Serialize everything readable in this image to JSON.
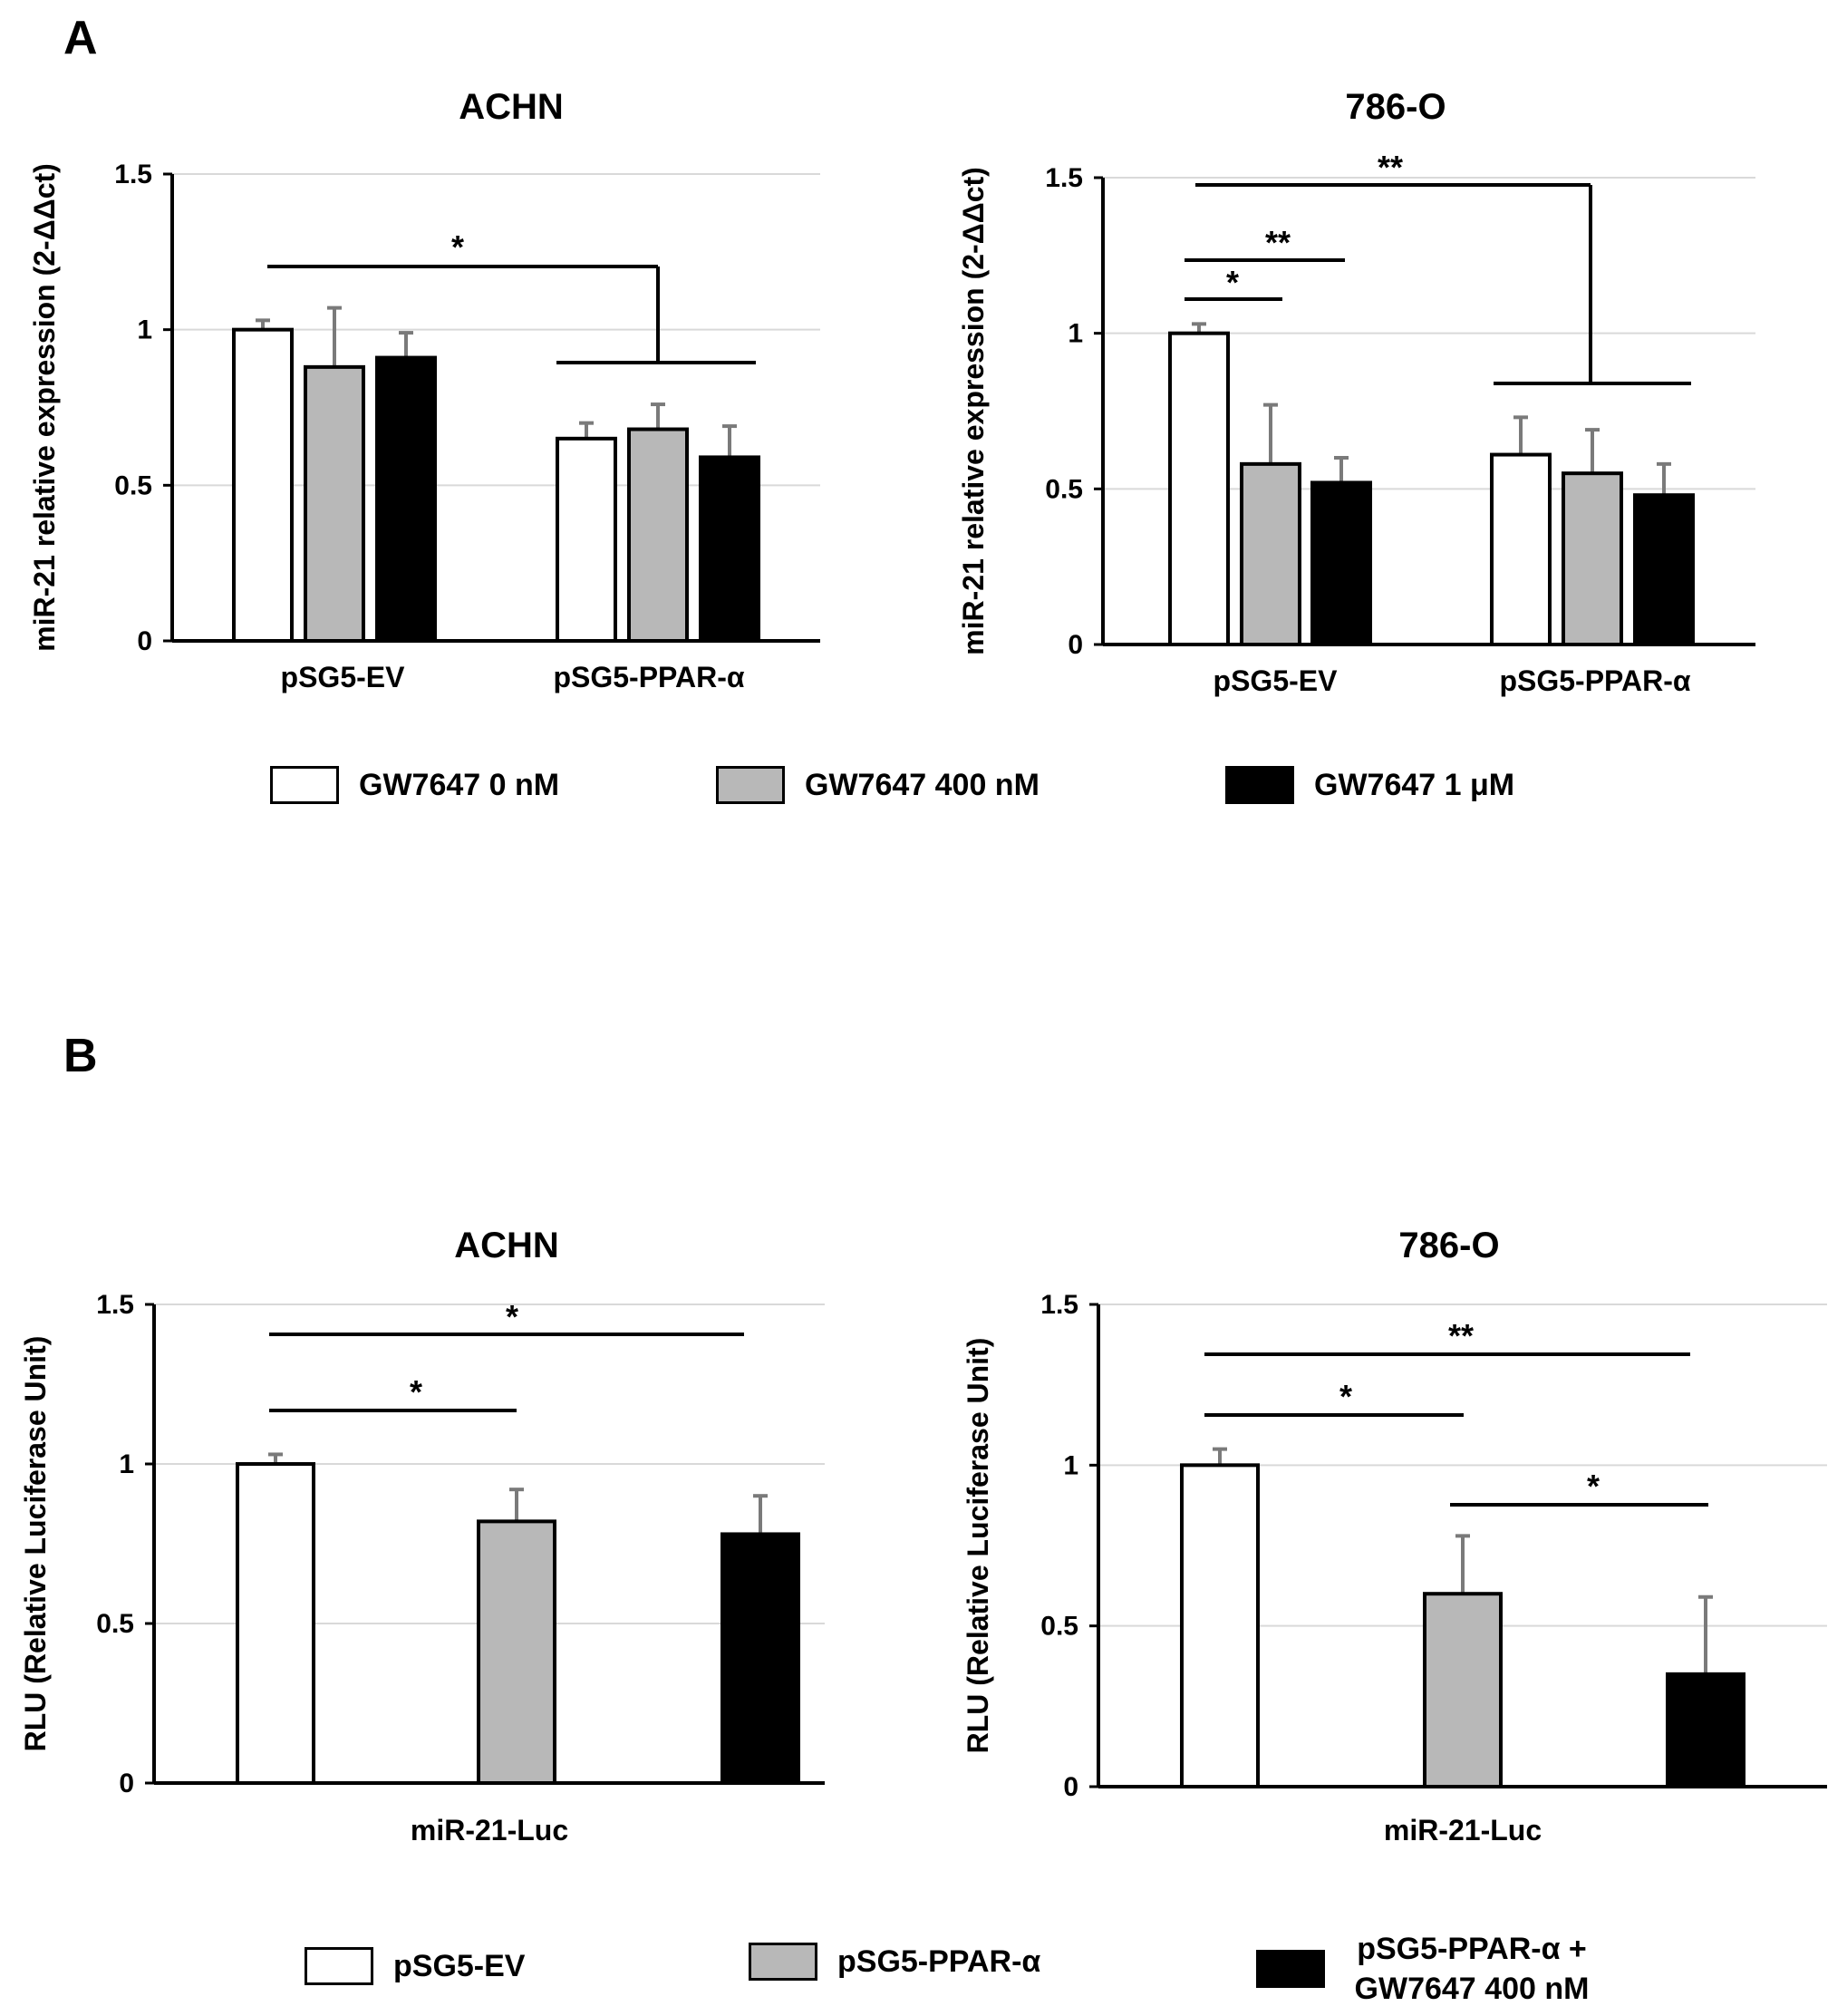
{
  "panels": {
    "A": {
      "label": "A"
    },
    "B": {
      "label": "B"
    }
  },
  "legends": {
    "A": [
      {
        "label": "GW7647 0 nM",
        "color": "#ffffff"
      },
      {
        "label": "GW7647 400 nM",
        "color": "#b8b8b8"
      },
      {
        "label": "GW7647 1 μM",
        "color": "#000000"
      }
    ],
    "B": [
      {
        "label": "pSG5-EV",
        "color": "#ffffff"
      },
      {
        "label": "pSG5-PPAR-α",
        "color": "#b8b8b8"
      },
      {
        "label_line1": "pSG5-PPAR-α +",
        "label_line2": "GW7647 400 nM",
        "color": "#000000"
      }
    ]
  },
  "chart_data": [
    {
      "id": "A-ACHN",
      "type": "bar",
      "title": "ACHN",
      "ylabel": "miR-21 relative expression (2-ΔΔct)",
      "ylim": [
        0,
        1.5
      ],
      "yticks": [
        "0",
        "0.5",
        "1",
        "1.5"
      ],
      "categories": [
        "pSG5-EV",
        "pSG5-PPAR-α"
      ],
      "series": [
        {
          "name": "GW7647 0 nM",
          "values": [
            1.0,
            0.65
          ],
          "errors": [
            0.03,
            0.05
          ]
        },
        {
          "name": "GW7647 400 nM",
          "values": [
            0.88,
            0.68
          ],
          "errors": [
            0.19,
            0.08
          ]
        },
        {
          "name": "GW7647 1 μM",
          "values": [
            0.91,
            0.59
          ],
          "errors": [
            0.08,
            0.1
          ]
        }
      ],
      "annotations": [
        {
          "text": "*"
        }
      ]
    },
    {
      "id": "A-786O",
      "type": "bar",
      "title": "786-O",
      "ylabel": "miR-21 relative expression (2-ΔΔct)",
      "ylim": [
        0,
        1.5
      ],
      "yticks": [
        "0",
        "0.5",
        "1",
        "1.5"
      ],
      "categories": [
        "pSG5-EV",
        "pSG5-PPAR-α"
      ],
      "series": [
        {
          "name": "GW7647 0 nM",
          "values": [
            1.0,
            0.61
          ],
          "errors": [
            0.03,
            0.12
          ]
        },
        {
          "name": "GW7647 400 nM",
          "values": [
            0.58,
            0.55
          ],
          "errors": [
            0.19,
            0.14
          ]
        },
        {
          "name": "GW7647 1 μM",
          "values": [
            0.52,
            0.48
          ],
          "errors": [
            0.08,
            0.1
          ]
        }
      ],
      "annotations": [
        {
          "text": "**"
        },
        {
          "text": "*"
        },
        {
          "text": "**"
        }
      ]
    },
    {
      "id": "B-ACHN",
      "type": "bar",
      "title": "ACHN",
      "ylabel": "RLU (Relative Luciferase Unit)",
      "ylim": [
        0,
        1.5
      ],
      "yticks": [
        "0",
        "0.5",
        "1",
        "1.5"
      ],
      "xlabel": "miR-21-Luc",
      "categories": [
        "pSG5-EV",
        "pSG5-PPAR-α",
        "pSG5-PPAR-α + GW7647 400 nM"
      ],
      "values": [
        1.0,
        0.82,
        0.78
      ],
      "errors": [
        0.03,
        0.1,
        0.12
      ],
      "annotations": [
        {
          "text": "*"
        },
        {
          "text": "*"
        }
      ]
    },
    {
      "id": "B-786O",
      "type": "bar",
      "title": "786-O",
      "ylabel": "RLU (Relative Luciferase Unit)",
      "ylim": [
        0,
        1.5
      ],
      "yticks": [
        "0",
        "0.5",
        "1",
        "1.5"
      ],
      "xlabel": "miR-21-Luc",
      "categories": [
        "pSG5-EV",
        "pSG5-PPAR-α",
        "pSG5-PPAR-α + GW7647 400 nM"
      ],
      "values": [
        1.0,
        0.6,
        0.35
      ],
      "errors": [
        0.05,
        0.18,
        0.24
      ],
      "annotations": [
        {
          "text": "**"
        },
        {
          "text": "*"
        },
        {
          "text": "*"
        }
      ]
    }
  ]
}
